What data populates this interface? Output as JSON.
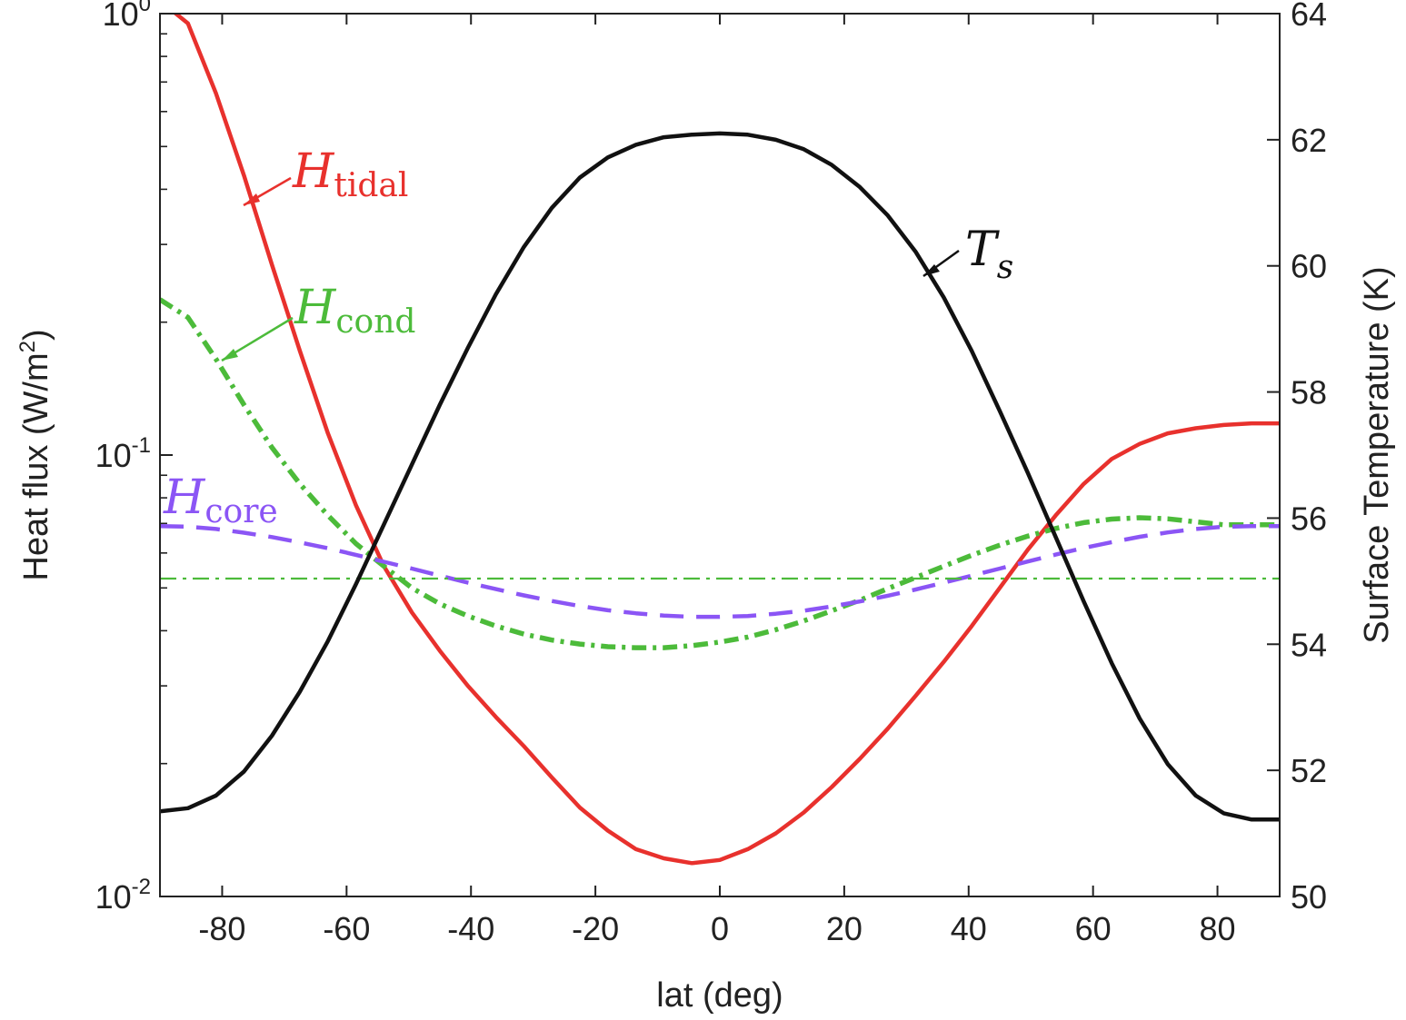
{
  "chart_data": {
    "type": "line",
    "x": [
      -90,
      -85.5,
      -81,
      -76.5,
      -72,
      -67.5,
      -63,
      -58.5,
      -54,
      -49.5,
      -45,
      -40.5,
      -36,
      -31.5,
      -27,
      -22.5,
      -18,
      -13.5,
      -9,
      -4.5,
      0,
      4.5,
      9,
      13.5,
      18,
      22.5,
      27,
      31.5,
      36,
      40.5,
      45,
      49.5,
      54,
      58.5,
      63,
      67.5,
      72,
      76.5,
      81,
      85.5,
      90
    ],
    "xlabel": "lat (deg)",
    "xlim": [
      -90,
      90
    ],
    "xticks": [
      "-80",
      "-60",
      "-40",
      "-20",
      "0",
      "20",
      "40",
      "60",
      "80"
    ],
    "xtick_values": [
      -80,
      -60,
      -40,
      -20,
      0,
      20,
      40,
      60,
      80
    ],
    "y_left": {
      "label_main": "Heat flux (W/m",
      "label_sup": "2",
      "label_end": ")",
      "scale": "log",
      "lim": [
        0.01,
        1.0
      ],
      "ticks": [
        {
          "value": 1.0,
          "base": "10",
          "exp": "0"
        },
        {
          "value": 0.1,
          "base": "10",
          "exp": "-1"
        },
        {
          "value": 0.01,
          "base": "10",
          "exp": "-2"
        }
      ]
    },
    "y_right": {
      "label": "Surface Temperature (K)",
      "lim": [
        50,
        64
      ],
      "ticks": [
        "50",
        "52",
        "54",
        "56",
        "58",
        "60",
        "62",
        "64"
      ],
      "tick_values": [
        50,
        52,
        54,
        56,
        58,
        60,
        62,
        64
      ]
    },
    "series": [
      {
        "name": "H_tidal",
        "axis": "left",
        "color": "#e8312d",
        "style": "solid",
        "values": [
          1.07,
          0.95,
          0.66,
          0.43,
          0.27,
          0.172,
          0.112,
          0.077,
          0.056,
          0.044,
          0.036,
          0.03,
          0.0255,
          0.0219,
          0.0186,
          0.0159,
          0.0141,
          0.0128,
          0.0122,
          0.0119,
          0.0121,
          0.0128,
          0.0139,
          0.0155,
          0.0177,
          0.0205,
          0.024,
          0.0285,
          0.034,
          0.041,
          0.05,
          0.061,
          0.073,
          0.086,
          0.098,
          0.106,
          0.112,
          0.115,
          0.117,
          0.118,
          0.118
        ]
      },
      {
        "name": "H_cond",
        "axis": "left",
        "color": "#4cbb3a",
        "style": "dashdot",
        "values": [
          0.225,
          0.205,
          0.165,
          0.13,
          0.104,
          0.086,
          0.073,
          0.063,
          0.056,
          0.05,
          0.046,
          0.0432,
          0.041,
          0.0393,
          0.0381,
          0.0373,
          0.0368,
          0.0366,
          0.0366,
          0.037,
          0.0377,
          0.0387,
          0.0402,
          0.0421,
          0.0444,
          0.0469,
          0.0498,
          0.0528,
          0.056,
          0.0593,
          0.0625,
          0.0655,
          0.0682,
          0.0703,
          0.0716,
          0.0721,
          0.0717,
          0.0706,
          0.0695,
          0.0695,
          0.0695
        ]
      },
      {
        "name": "H_core",
        "axis": "left",
        "color": "#8b55f5",
        "style": "dashed",
        "values": [
          0.069,
          0.0688,
          0.068,
          0.0667,
          0.0652,
          0.0634,
          0.0615,
          0.0594,
          0.0573,
          0.0553,
          0.0533,
          0.0514,
          0.0497,
          0.0481,
          0.0467,
          0.0455,
          0.0445,
          0.0438,
          0.0433,
          0.043,
          0.043,
          0.0432,
          0.0437,
          0.0444,
          0.0454,
          0.0466,
          0.048,
          0.0496,
          0.0514,
          0.0533,
          0.0553,
          0.0574,
          0.0595,
          0.0616,
          0.0635,
          0.0653,
          0.0668,
          0.068,
          0.0688,
          0.069,
          0.069
        ]
      },
      {
        "name": "H_cond_mean",
        "axis": "left",
        "color": "#4cbb3a",
        "style": "dashdot-thin",
        "values": [
          0.0525,
          0.0525,
          0.0525,
          0.0525,
          0.0525,
          0.0525,
          0.0525,
          0.0525,
          0.0525,
          0.0525,
          0.0525,
          0.0525,
          0.0525,
          0.0525,
          0.0525,
          0.0525,
          0.0525,
          0.0525,
          0.0525,
          0.0525,
          0.0525,
          0.0525,
          0.0525,
          0.0525,
          0.0525,
          0.0525,
          0.0525,
          0.0525,
          0.0525,
          0.0525,
          0.0525,
          0.0525,
          0.0525,
          0.0525,
          0.0525,
          0.0525,
          0.0525,
          0.0525,
          0.0525,
          0.0525,
          0.0525
        ]
      },
      {
        "name": "T_s",
        "axis": "right",
        "color": "#111111",
        "style": "solid",
        "values": [
          51.35,
          51.4,
          51.6,
          51.98,
          52.55,
          53.25,
          54.05,
          54.95,
          55.9,
          56.85,
          57.8,
          58.7,
          59.55,
          60.3,
          60.92,
          61.4,
          61.72,
          61.92,
          62.04,
          62.08,
          62.1,
          62.08,
          62.0,
          61.85,
          61.6,
          61.25,
          60.8,
          60.22,
          59.5,
          58.65,
          57.7,
          56.72,
          55.7,
          54.68,
          53.7,
          52.82,
          52.1,
          51.6,
          51.32,
          51.22,
          51.22
        ]
      }
    ],
    "annotations": [
      {
        "name": "tidal",
        "script": "H",
        "sub": "tidal",
        "color": "#e8312d"
      },
      {
        "name": "cond",
        "script": "H",
        "sub": "cond",
        "color": "#4cbb3a"
      },
      {
        "name": "core",
        "script": "H",
        "sub": "core",
        "color": "#8b55f5"
      },
      {
        "name": "ts",
        "main": "T",
        "sub": "s",
        "color": "#111111"
      }
    ]
  }
}
